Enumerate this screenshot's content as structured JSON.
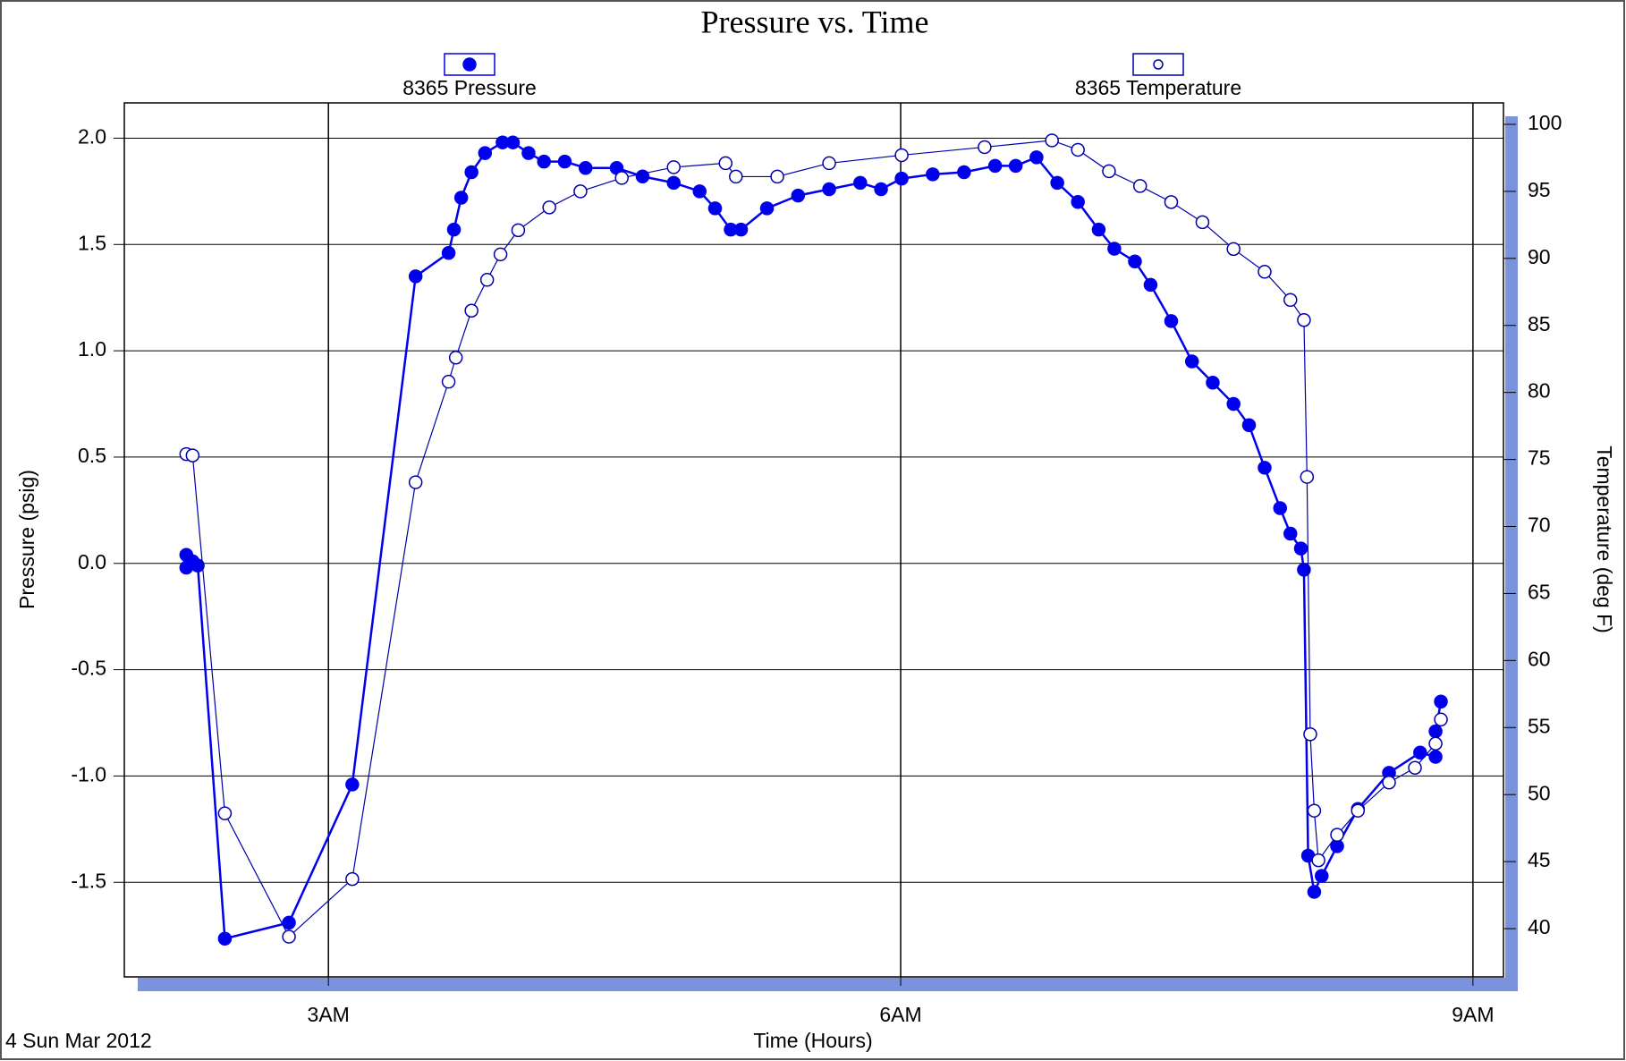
{
  "chart_data": {
    "type": "line",
    "title": "Pressure vs. Time",
    "xlabel": "Time (Hours)",
    "ylabel": "Pressure (psig)",
    "y2label": "Temperature (deg F)",
    "annotation": "4 Sun Mar 2012",
    "xlim": [
      1.93,
      9.16
    ],
    "xticks": [
      {
        "value": 3,
        "label": "3AM"
      },
      {
        "value": 6,
        "label": "6AM"
      },
      {
        "value": 9,
        "label": "9AM"
      }
    ],
    "ylim": [
      -1.945,
      2.166
    ],
    "yticks": [
      {
        "value": 2,
        "label": "2.0"
      },
      1.5,
      {
        "value": 1,
        "label": "1.0"
      },
      0.5,
      {
        "value": 0,
        "label": "0.0"
      },
      -0.5,
      {
        "value": -1,
        "label": "-1.0"
      },
      -1.5
    ],
    "y2lim": [
      36.4,
      101.6
    ],
    "y2ticks": [
      40,
      45,
      50,
      55,
      60,
      65,
      70,
      75,
      80,
      85,
      90,
      95,
      100
    ],
    "grid": true,
    "series": [
      {
        "name": "8365 Pressure",
        "color": "#0000ee",
        "marker": "filled",
        "x": [
          2.255,
          2.255,
          2.288,
          2.315,
          2.457,
          2.793,
          3.125,
          3.457,
          3.63,
          3.658,
          3.696,
          3.75,
          3.821,
          3.913,
          3.967,
          4.049,
          4.13,
          4.239,
          4.348,
          4.511,
          4.647,
          4.81,
          4.946,
          5.027,
          5.109,
          5.163,
          5.299,
          5.462,
          5.625,
          5.788,
          5.897,
          6.005,
          6.168,
          6.332,
          6.495,
          6.603,
          6.712,
          6.821,
          6.929,
          7.038,
          7.12,
          7.228,
          7.31,
          7.418,
          7.527,
          7.636,
          7.745,
          7.826,
          7.908,
          7.989,
          8.043,
          8.098,
          8.114,
          8.136,
          8.168,
          8.207,
          8.288,
          8.397,
          8.56,
          8.723,
          8.804,
          8.804,
          8.832
        ],
        "values": [
          0.04,
          -0.02,
          0.01,
          -0.01,
          -1.765,
          -1.69,
          -1.04,
          1.35,
          1.46,
          1.57,
          1.72,
          1.84,
          1.93,
          1.98,
          1.98,
          1.93,
          1.89,
          1.89,
          1.86,
          1.86,
          1.82,
          1.79,
          1.75,
          1.67,
          1.57,
          1.57,
          1.67,
          1.73,
          1.76,
          1.79,
          1.76,
          1.81,
          1.83,
          1.84,
          1.87,
          1.87,
          1.91,
          1.79,
          1.7,
          1.57,
          1.48,
          1.42,
          1.31,
          1.14,
          0.95,
          0.85,
          0.75,
          0.65,
          0.45,
          0.26,
          0.14,
          0.07,
          -0.03,
          -1.375,
          -1.545,
          -1.47,
          -1.33,
          -1.155,
          -0.985,
          -0.89,
          -0.91,
          -0.79,
          -0.65
        ]
      },
      {
        "name": "8365 Temperature",
        "color": "#0000aa",
        "marker": "open",
        "axis": "y2",
        "x": [
          2.255,
          2.288,
          2.457,
          2.793,
          3.125,
          3.457,
          3.63,
          3.668,
          3.75,
          3.832,
          3.902,
          3.995,
          4.158,
          4.321,
          4.538,
          4.81,
          5.082,
          5.136,
          5.353,
          5.625,
          6.005,
          6.44,
          6.793,
          6.929,
          7.092,
          7.255,
          7.418,
          7.582,
          7.745,
          7.908,
          8.043,
          8.114,
          8.13,
          8.147,
          8.168,
          8.19,
          8.288,
          8.397,
          8.56,
          8.696,
          8.804,
          8.832
        ],
        "values": [
          75.4,
          75.3,
          48.6,
          39.4,
          43.7,
          73.3,
          80.8,
          82.6,
          86.1,
          88.4,
          90.3,
          92.1,
          93.8,
          95.0,
          96.0,
          96.8,
          97.1,
          96.1,
          96.1,
          97.1,
          97.7,
          98.3,
          98.8,
          98.1,
          96.5,
          95.4,
          94.2,
          92.7,
          90.7,
          89.0,
          86.9,
          85.4,
          73.7,
          54.5,
          48.8,
          45.1,
          47.0,
          48.8,
          50.9,
          52.0,
          53.8,
          55.6
        ]
      }
    ]
  }
}
